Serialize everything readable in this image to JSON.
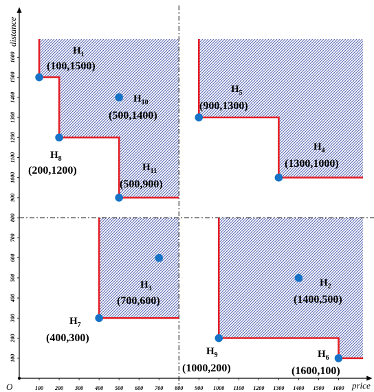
{
  "chart_data": {
    "type": "scatter",
    "xlabel": "price",
    "ylabel": "distance",
    "origin_label": "O",
    "xlim": [
      0,
      1800
    ],
    "ylim": [
      0,
      1800
    ],
    "xticks": [
      100,
      200,
      300,
      400,
      500,
      600,
      700,
      800,
      900,
      1000,
      1100,
      1200,
      1300,
      1400,
      1500,
      1600
    ],
    "yticks": [
      100,
      200,
      300,
      400,
      500,
      600,
      700,
      800,
      900,
      1000,
      1100,
      1200,
      1300,
      1400,
      1500,
      1600
    ],
    "divider_x": 800,
    "divider_y": 800,
    "points": [
      {
        "id": "H1",
        "prefix": "H",
        "sub": "1",
        "x": 100,
        "y": 1500,
        "coord": "(100,1500)"
      },
      {
        "id": "H2",
        "prefix": "H",
        "sub": "2",
        "x": 1400,
        "y": 500,
        "coord": "(1400,500)"
      },
      {
        "id": "H3",
        "prefix": "H",
        "sub": "3",
        "x": 700,
        "y": 600,
        "coord": "(700,600)"
      },
      {
        "id": "H4",
        "prefix": "H",
        "sub": "4",
        "x": 1300,
        "y": 1000,
        "coord": "(1300,1000)"
      },
      {
        "id": "H5",
        "prefix": "H",
        "sub": "5",
        "x": 900,
        "y": 1300,
        "coord": "(900,1300)"
      },
      {
        "id": "H6",
        "prefix": "H",
        "sub": "6",
        "x": 1600,
        "y": 100,
        "coord": "(1600,100)"
      },
      {
        "id": "H7",
        "prefix": "H",
        "sub": "7",
        "x": 400,
        "y": 300,
        "coord": "(400,300)"
      },
      {
        "id": "H8",
        "prefix": "H",
        "sub": "8",
        "x": 200,
        "y": 1200,
        "coord": "(200,1200)"
      },
      {
        "id": "H9",
        "prefix": "H",
        "sub": "9",
        "x": 1000,
        "y": 200,
        "coord": "(1000,200)"
      },
      {
        "id": "H10",
        "prefix": "H",
        "sub": "10",
        "x": 500,
        "y": 1400,
        "coord": "(500,1400)"
      },
      {
        "id": "H11",
        "prefix": "H",
        "sub": "11",
        "x": 500,
        "y": 900,
        "coord": "(500,900)"
      }
    ],
    "skylines": [
      {
        "quadrant": "top-left",
        "steps": [
          [
            100,
            1500
          ],
          [
            200,
            1200
          ],
          [
            500,
            900
          ]
        ]
      },
      {
        "quadrant": "top-right",
        "steps": [
          [
            900,
            1300
          ],
          [
            1300,
            1000
          ]
        ]
      },
      {
        "quadrant": "bottom-left",
        "steps": [
          [
            400,
            300
          ]
        ]
      },
      {
        "quadrant": "bottom-right",
        "steps": [
          [
            1000,
            200
          ],
          [
            1600,
            100
          ]
        ]
      }
    ],
    "colors": {
      "point": "#1673c7",
      "skyline": "#e41e26",
      "hatch": "#2b3fa0",
      "divider": "#000000",
      "axis": "#000000"
    }
  }
}
